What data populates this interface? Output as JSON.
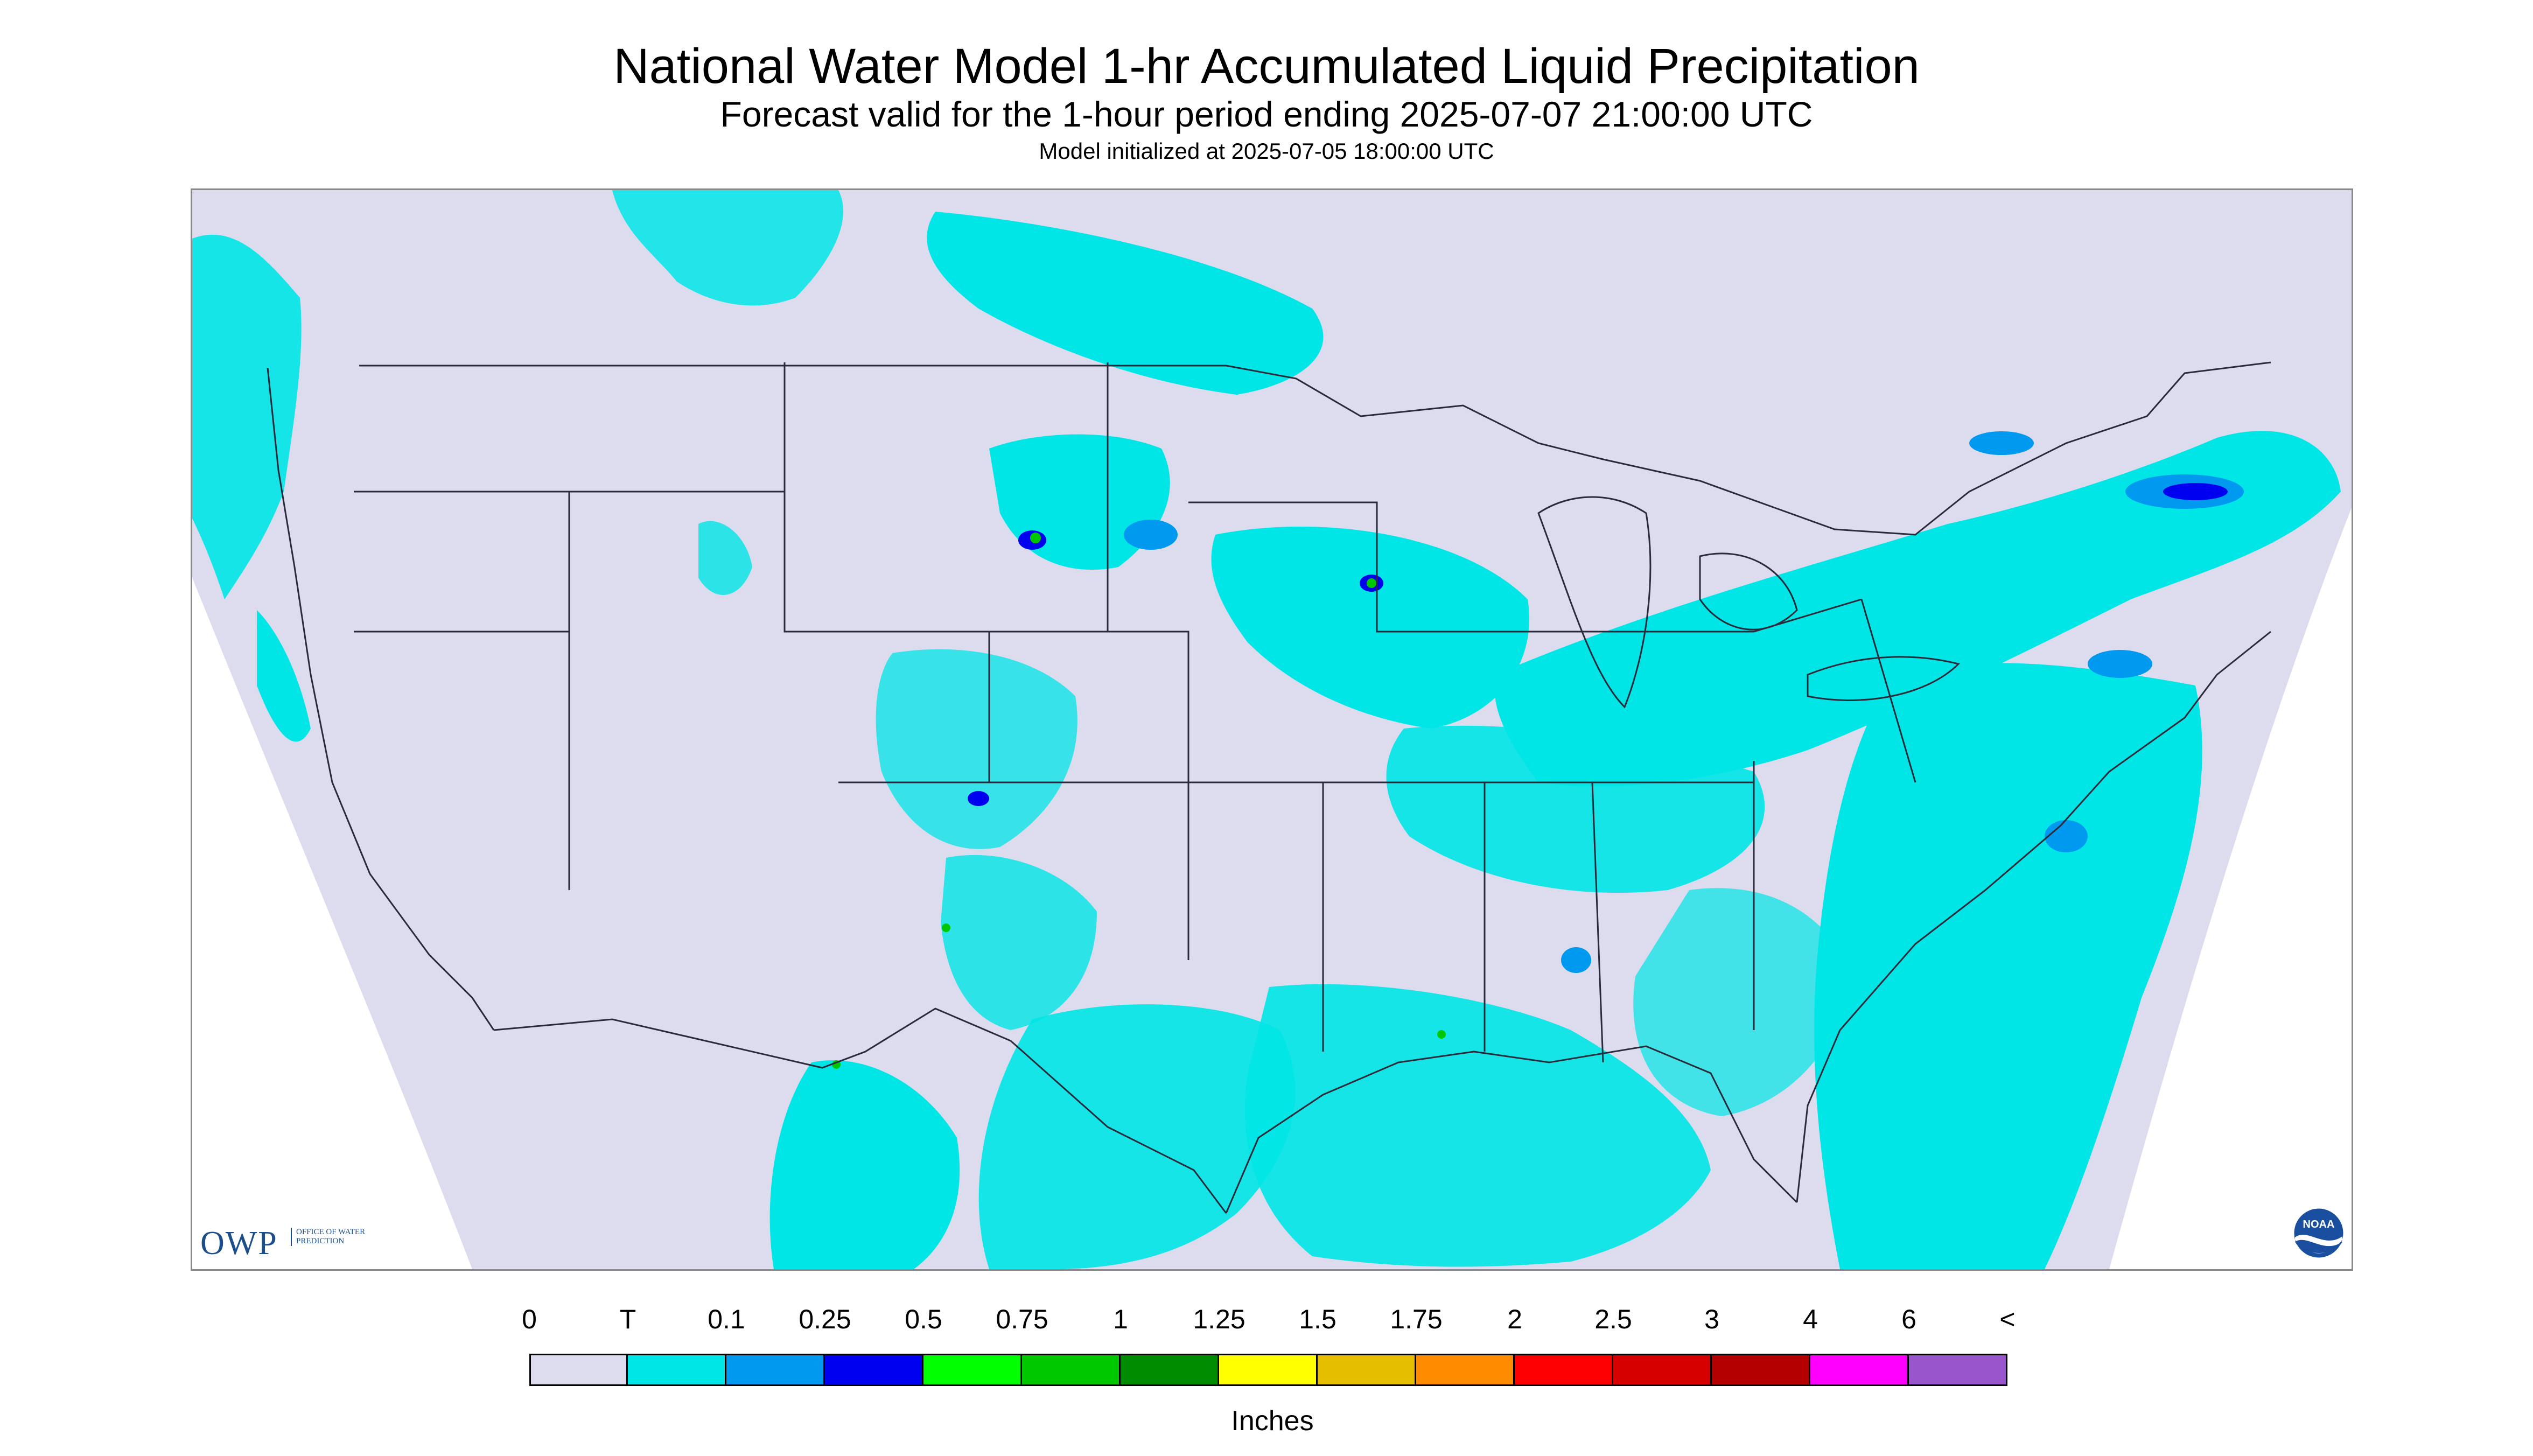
{
  "title": "National Water Model 1-hr Accumulated Liquid Precipitation",
  "subtitle": "Forecast valid for the 1-hour period ending 2025-07-07 21:00:00 UTC",
  "init_line": "Model initialized at 2025-07-05 18:00:00 UTC",
  "logos": {
    "owp_letters": "OWP",
    "owp_text": "OFFICE OF WATER PREDICTION",
    "noaa_text": "NOAA"
  },
  "colors": {
    "background": "#dcdcee",
    "outside": "#ffffff",
    "boundary": "#2a2a3a",
    "levels": [
      "#dcdcee",
      "#00e6e6",
      "#0099f0",
      "#0000f0",
      "#00ff00",
      "#00c800",
      "#008c00",
      "#ffff00",
      "#e6be00",
      "#ff8c00",
      "#ff0000",
      "#d70000",
      "#b40000",
      "#ff00ff",
      "#9955cc"
    ]
  },
  "legend": {
    "tick_labels": [
      "0",
      "T",
      "0.1",
      "0.25",
      "0.5",
      "0.75",
      "1",
      "1.25",
      "1.5",
      "1.75",
      "2",
      "2.5",
      "3",
      "4",
      "6",
      "<"
    ],
    "units": "Inches"
  }
}
